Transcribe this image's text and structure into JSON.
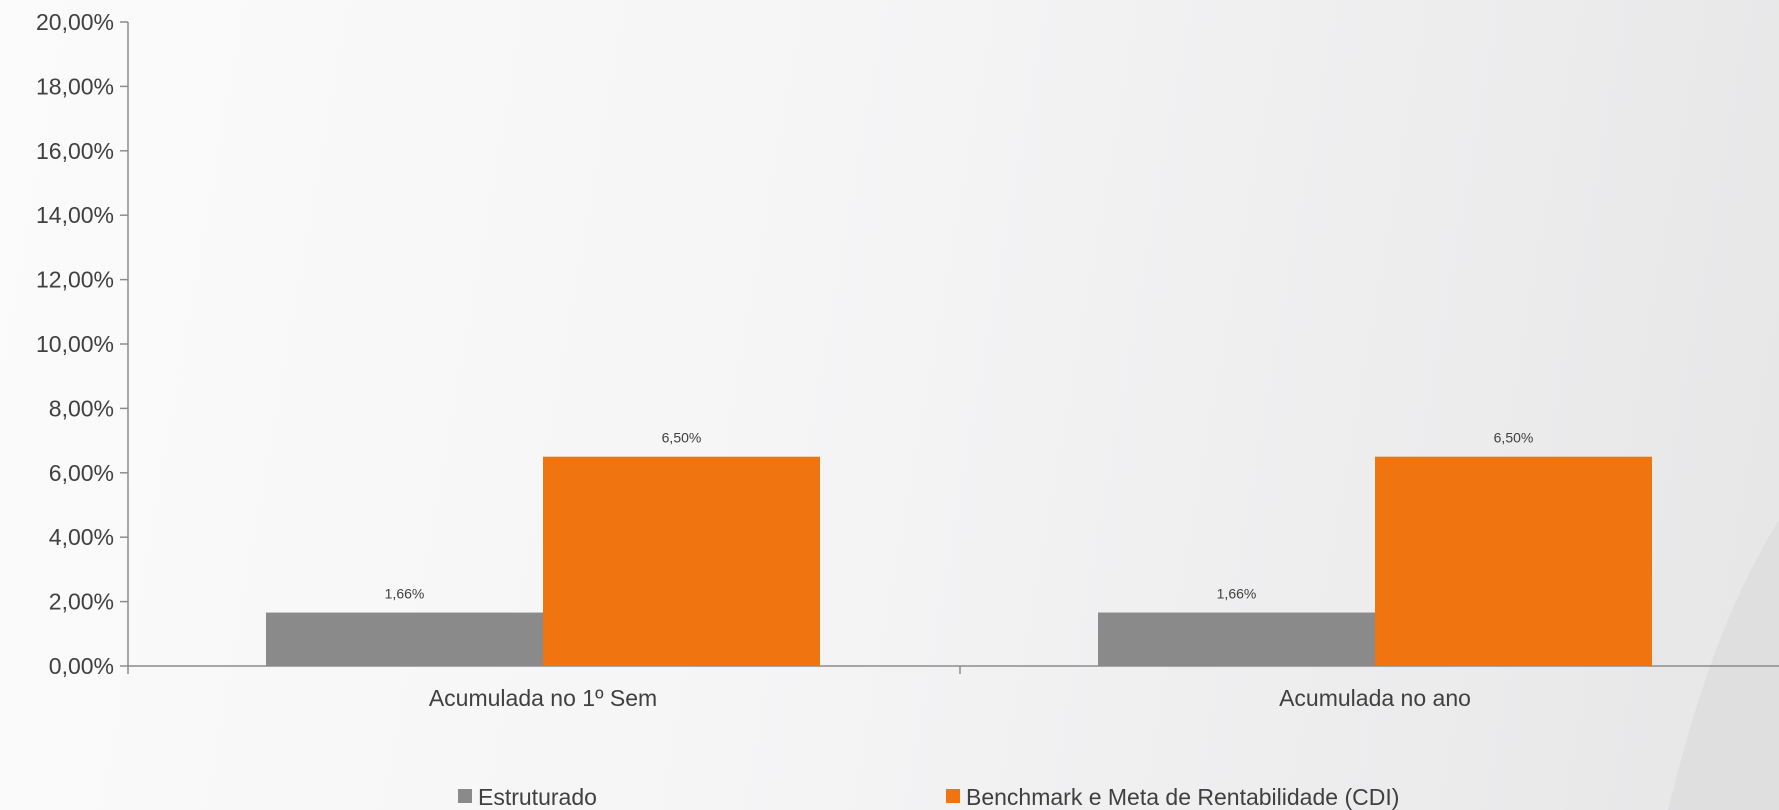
{
  "chart_data": {
    "type": "bar",
    "categories": [
      "Acumulada no 1º Sem",
      "Acumulada no ano"
    ],
    "series": [
      {
        "name": "Estruturado",
        "values": [
          1.66,
          1.66
        ],
        "labels": [
          "1,66%",
          "1,66%"
        ],
        "color": "#8a8a8a"
      },
      {
        "name": "Benchmark e Meta de Rentabilidade (CDI)",
        "values": [
          6.5,
          6.5
        ],
        "labels": [
          "6,50%",
          "6,50%"
        ],
        "color": "#f07511"
      }
    ],
    "ylim": [
      0,
      20
    ],
    "yticks": [
      {
        "value": 0,
        "label": "0,00%"
      },
      {
        "value": 2,
        "label": "2,00%"
      },
      {
        "value": 4,
        "label": "4,00%"
      },
      {
        "value": 6,
        "label": "6,00%"
      },
      {
        "value": 8,
        "label": "8,00%"
      },
      {
        "value": 10,
        "label": "10,00%"
      },
      {
        "value": 12,
        "label": "12,00%"
      },
      {
        "value": 14,
        "label": "14,00%"
      },
      {
        "value": 16,
        "label": "16,00%"
      },
      {
        "value": 18,
        "label": "18,00%"
      },
      {
        "value": 20,
        "label": "20,00%"
      }
    ],
    "title": "",
    "xlabel": "",
    "ylabel": "",
    "grid": false,
    "legend": "bottom",
    "axis_color": "#8c8c8c"
  }
}
